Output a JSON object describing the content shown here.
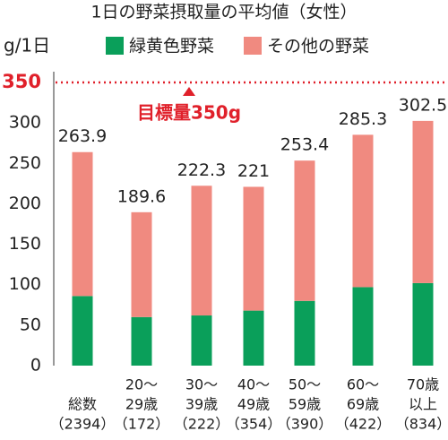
{
  "chart_data": {
    "type": "stacked-bar",
    "title": "1日の野菜摂取量の平均値（女性）",
    "y_label": "g/1日",
    "categories": [
      [
        "総数",
        "（2394）"
      ],
      [
        "20～",
        "29歳",
        "（172）"
      ],
      [
        "30～",
        "39歳",
        "（222）"
      ],
      [
        "40～",
        "49歳",
        "（354）"
      ],
      [
        "50～",
        "59歳",
        "（390）"
      ],
      [
        "60～",
        "69歳",
        "（422）"
      ],
      [
        "70歳",
        "以上",
        "（834）"
      ]
    ],
    "series": [
      {
        "name": "緑黄色野菜",
        "color": "#0a9f5a",
        "values": [
          86,
          60,
          62,
          68,
          80,
          97,
          102
        ]
      },
      {
        "name": "その他の野菜",
        "color": "#f08a80",
        "values": [
          177.9,
          129.6,
          160.3,
          153,
          173.4,
          188.3,
          200.5
        ]
      }
    ],
    "totals": [
      263.9,
      189.6,
      222.3,
      221,
      253.4,
      285.3,
      302.5
    ],
    "target": 350,
    "target_label": "目標量350g",
    "target_color": "#e0202a",
    "ylim": [
      0,
      350
    ],
    "yticks": [
      0,
      50,
      100,
      150,
      200,
      250,
      300
    ]
  }
}
